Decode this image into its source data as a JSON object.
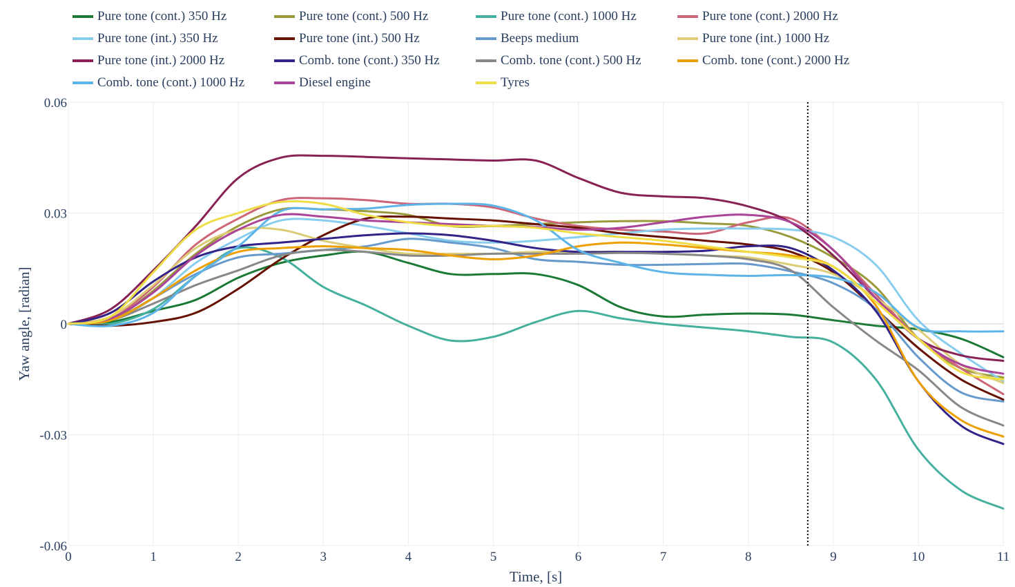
{
  "chart_data": {
    "type": "line",
    "xlabel": "Time, [s]",
    "ylabel": "Yaw angle, [radian]",
    "xlim": [
      0,
      11
    ],
    "ylim": [
      -0.06,
      0.06
    ],
    "xticks": [
      0,
      1,
      2,
      3,
      4,
      5,
      6,
      7,
      8,
      9,
      10,
      11
    ],
    "xtick_labels": [
      "0",
      "1",
      "2",
      "3",
      "4",
      "5",
      "6",
      "7",
      "8",
      "9",
      "10",
      "11"
    ],
    "yticks": [
      -0.06,
      -0.03,
      0,
      0.03,
      0.06
    ],
    "ytick_labels": [
      "-0.06",
      "-0.03",
      "0",
      "0.03",
      "0.06"
    ],
    "grid": true,
    "legend_position": "top",
    "vline_x": 8.7,
    "series": [
      {
        "name": "Pure tone (cont.) 350 Hz",
        "color": "#1a7a35",
        "x": [
          0,
          0.5,
          1,
          1.5,
          2,
          2.5,
          3,
          3.5,
          4,
          4.5,
          5,
          5.5,
          6,
          6.5,
          7,
          7.5,
          8,
          8.5,
          9,
          9.5,
          10,
          10.5,
          11
        ],
        "y": [
          0,
          0.0005,
          0.0035,
          0.0065,
          0.0125,
          0.0165,
          0.0185,
          0.0195,
          0.0165,
          0.0135,
          0.0135,
          0.0135,
          0.0105,
          0.0045,
          0.002,
          0.0025,
          0.0028,
          0.0025,
          0.001,
          -0.0005,
          -0.0015,
          -0.004,
          -0.009
        ]
      },
      {
        "name": "Pure tone (cont.) 500 Hz",
        "color": "#9a9a3a",
        "x": [
          0,
          0.5,
          1,
          1.5,
          2,
          2.5,
          3,
          3.5,
          4,
          4.5,
          5,
          5.5,
          6,
          6.5,
          7,
          7.5,
          8,
          8.5,
          9,
          9.5,
          10,
          10.5,
          11
        ],
        "y": [
          0,
          0.001,
          0.009,
          0.019,
          0.0265,
          0.031,
          0.031,
          0.0305,
          0.0295,
          0.0265,
          0.0265,
          0.027,
          0.0275,
          0.0278,
          0.0278,
          0.0272,
          0.0265,
          0.0235,
          0.018,
          0.01,
          -0.004,
          -0.012,
          -0.0145
        ]
      },
      {
        "name": "Pure tone (cont.) 1000 Hz",
        "color": "#45b09e",
        "x": [
          0,
          0.5,
          1,
          1.5,
          2,
          2.5,
          3,
          3.5,
          4,
          4.5,
          5,
          5.5,
          6,
          6.5,
          7,
          7.5,
          8,
          8.5,
          9,
          9.5,
          10,
          10.5,
          11
        ],
        "y": [
          0,
          0,
          0.004,
          0.013,
          0.0205,
          0.018,
          0.01,
          0.005,
          -0.0005,
          -0.0045,
          -0.0035,
          0.0005,
          0.0035,
          0.0015,
          0,
          -0.001,
          -0.002,
          -0.0035,
          -0.005,
          -0.015,
          -0.034,
          -0.045,
          -0.05
        ]
      },
      {
        "name": "Pure tone (cont.) 2000 Hz",
        "color": "#cc6677",
        "x": [
          0,
          0.5,
          1,
          1.5,
          2,
          2.5,
          3,
          3.5,
          4,
          4.5,
          5,
          5.5,
          6,
          6.5,
          7,
          7.5,
          8,
          8.5,
          9,
          9.5,
          10,
          10.5,
          11
        ],
        "y": [
          0,
          0.0015,
          0.01,
          0.0215,
          0.0285,
          0.0335,
          0.034,
          0.0335,
          0.0325,
          0.0325,
          0.0315,
          0.0285,
          0.0265,
          0.0255,
          0.025,
          0.0245,
          0.0275,
          0.0285,
          0.02,
          0.008,
          -0.004,
          -0.012,
          -0.019
        ]
      },
      {
        "name": "Pure tone (int.) 350 Hz",
        "color": "#88ccee",
        "x": [
          0,
          0.5,
          1,
          1.5,
          2,
          2.5,
          3,
          3.5,
          4,
          4.5,
          5,
          5.5,
          6,
          6.5,
          7,
          7.5,
          8,
          8.5,
          9,
          9.5,
          10,
          10.5,
          11
        ],
        "y": [
          0,
          0.001,
          0.007,
          0.0165,
          0.023,
          0.028,
          0.028,
          0.0265,
          0.0245,
          0.0225,
          0.022,
          0.0225,
          0.0235,
          0.0245,
          0.0255,
          0.0258,
          0.0258,
          0.0255,
          0.0235,
          0.016,
          0.001,
          -0.008,
          -0.0155
        ]
      },
      {
        "name": "Pure tone (int.) 500 Hz",
        "color": "#661100",
        "x": [
          0,
          0.5,
          1,
          1.5,
          2,
          2.5,
          3,
          3.5,
          4,
          4.5,
          5,
          5.5,
          6,
          6.5,
          7,
          7.5,
          8,
          8.5,
          9,
          9.5,
          10,
          10.5,
          11
        ],
        "y": [
          0,
          -0.0005,
          0.0005,
          0.003,
          0.0095,
          0.0175,
          0.024,
          0.0285,
          0.029,
          0.0285,
          0.028,
          0.027,
          0.026,
          0.0245,
          0.0235,
          0.0225,
          0.0215,
          0.0195,
          0.014,
          0.004,
          -0.0065,
          -0.015,
          -0.0205
        ]
      },
      {
        "name": "Beeps medium",
        "color": "#6699cc",
        "x": [
          0,
          0.5,
          1,
          1.5,
          2,
          2.5,
          3,
          3.5,
          4,
          4.5,
          5,
          5.5,
          6,
          6.5,
          7,
          7.5,
          8,
          8.5,
          9,
          9.5,
          10,
          10.5,
          11
        ],
        "y": [
          0,
          0.001,
          0.007,
          0.0135,
          0.018,
          0.019,
          0.02,
          0.021,
          0.023,
          0.022,
          0.0205,
          0.0175,
          0.0168,
          0.016,
          0.016,
          0.0162,
          0.0162,
          0.0142,
          0.011,
          0.004,
          -0.009,
          -0.0185,
          -0.021
        ]
      },
      {
        "name": "Pure tone (int.) 1000 Hz",
        "color": "#ddcc77",
        "x": [
          0,
          0.5,
          1,
          1.5,
          2,
          2.5,
          3,
          3.5,
          4,
          4.5,
          5,
          5.5,
          6,
          6.5,
          7,
          7.5,
          8,
          8.5,
          9,
          9.5,
          10,
          10.5,
          11
        ],
        "y": [
          0,
          0.002,
          0.0105,
          0.0205,
          0.0255,
          0.0255,
          0.0225,
          0.0205,
          0.019,
          0.019,
          0.019,
          0.0195,
          0.0195,
          0.0195,
          0.019,
          0.0185,
          0.018,
          0.016,
          0.0135,
          0.007,
          -0.0015,
          -0.011,
          -0.016
        ]
      },
      {
        "name": "Pure tone (int.) 2000 Hz",
        "color": "#882255",
        "x": [
          0,
          0.5,
          1,
          1.5,
          2,
          2.5,
          3,
          3.5,
          4,
          4.5,
          5,
          5.5,
          6,
          6.5,
          7,
          7.5,
          8,
          8.5,
          9,
          9.5,
          10,
          10.5,
          11
        ],
        "y": [
          0,
          0.004,
          0.0145,
          0.0265,
          0.0395,
          0.045,
          0.0455,
          0.0452,
          0.0448,
          0.0445,
          0.0442,
          0.0442,
          0.0395,
          0.0355,
          0.0345,
          0.034,
          0.0318,
          0.0275,
          0.0185,
          0.007,
          -0.004,
          -0.0085,
          -0.01
        ]
      },
      {
        "name": "Comb. tone (cont.) 350 Hz",
        "color": "#332288",
        "x": [
          0,
          0.5,
          1,
          1.5,
          2,
          2.5,
          3,
          3.5,
          4,
          4.5,
          5,
          5.5,
          6,
          6.5,
          7,
          7.5,
          8,
          8.5,
          9,
          9.5,
          10,
          10.5,
          11
        ],
        "y": [
          0,
          0.003,
          0.0115,
          0.018,
          0.021,
          0.022,
          0.023,
          0.024,
          0.0245,
          0.024,
          0.0225,
          0.0205,
          0.0195,
          0.0195,
          0.0195,
          0.0198,
          0.021,
          0.0205,
          0.0145,
          0.0035,
          -0.0155,
          -0.0275,
          -0.0325
        ]
      },
      {
        "name": "Comb. tone (cont.) 500 Hz",
        "color": "#888888",
        "x": [
          0,
          0.5,
          1,
          1.5,
          2,
          2.5,
          3,
          3.5,
          4,
          4.5,
          5,
          5.5,
          6,
          6.5,
          7,
          7.5,
          8,
          8.5,
          9,
          9.5,
          10,
          10.5,
          11
        ],
        "y": [
          0,
          0.001,
          0.0055,
          0.0105,
          0.0145,
          0.0185,
          0.02,
          0.0195,
          0.0185,
          0.0185,
          0.019,
          0.019,
          0.019,
          0.0192,
          0.019,
          0.0185,
          0.0175,
          0.0145,
          0.0045,
          -0.0045,
          -0.0125,
          -0.0225,
          -0.0275
        ]
      },
      {
        "name": "Comb. tone (cont.) 2000 Hz",
        "color": "#ee9f00",
        "x": [
          0,
          0.5,
          1,
          1.5,
          2,
          2.5,
          3,
          3.5,
          4,
          4.5,
          5,
          5.5,
          6,
          6.5,
          7,
          7.5,
          8,
          8.5,
          9,
          9.5,
          10,
          10.5,
          11
        ],
        "y": [
          0,
          0.001,
          0.007,
          0.0145,
          0.0195,
          0.0205,
          0.021,
          0.0205,
          0.02,
          0.0185,
          0.0175,
          0.0185,
          0.021,
          0.022,
          0.0215,
          0.0205,
          0.0195,
          0.0185,
          0.0155,
          0.005,
          -0.0155,
          -0.026,
          -0.0305
        ]
      },
      {
        "name": "Comb. tone (cont.) 1000 Hz",
        "color": "#5db4e8",
        "x": [
          0,
          0.5,
          1,
          1.5,
          2,
          2.5,
          3,
          3.5,
          4,
          4.5,
          5,
          5.5,
          6,
          6.5,
          7,
          7.5,
          8,
          8.5,
          9,
          9.5,
          10,
          10.5,
          11
        ],
        "y": [
          0,
          -0.0005,
          0.003,
          0.013,
          0.021,
          0.0305,
          0.031,
          0.0312,
          0.0322,
          0.0325,
          0.032,
          0.028,
          0.02,
          0.0165,
          0.014,
          0.0133,
          0.013,
          0.0132,
          0.0125,
          0.0085,
          -0.001,
          -0.002,
          -0.002
        ]
      },
      {
        "name": "Diesel engine",
        "color": "#aa4499",
        "x": [
          0,
          0.5,
          1,
          1.5,
          2,
          2.5,
          3,
          3.5,
          4,
          4.5,
          5,
          5.5,
          6,
          6.5,
          7,
          7.5,
          8,
          8.5,
          9,
          9.5,
          10,
          10.5,
          11
        ],
        "y": [
          0,
          0.0015,
          0.0085,
          0.0185,
          0.0255,
          0.0295,
          0.029,
          0.028,
          0.0275,
          0.027,
          0.0265,
          0.0262,
          0.0255,
          0.026,
          0.0275,
          0.029,
          0.0295,
          0.0275,
          0.02,
          0.007,
          -0.004,
          -0.011,
          -0.0135
        ]
      },
      {
        "name": "Tyres",
        "color": "#eedd44",
        "x": [
          0,
          0.5,
          1,
          1.5,
          2,
          2.5,
          3,
          3.5,
          4,
          4.5,
          5,
          5.5,
          6,
          6.5,
          7,
          7.5,
          8,
          8.5,
          9,
          9.5,
          10,
          10.5,
          11
        ],
        "y": [
          0,
          0.002,
          0.014,
          0.0255,
          0.03,
          0.033,
          0.0325,
          0.0295,
          0.0275,
          0.0265,
          0.0265,
          0.026,
          0.0245,
          0.0235,
          0.0225,
          0.021,
          0.0195,
          0.018,
          0.0155,
          0.006,
          -0.004,
          -0.013,
          -0.015
        ]
      }
    ]
  }
}
